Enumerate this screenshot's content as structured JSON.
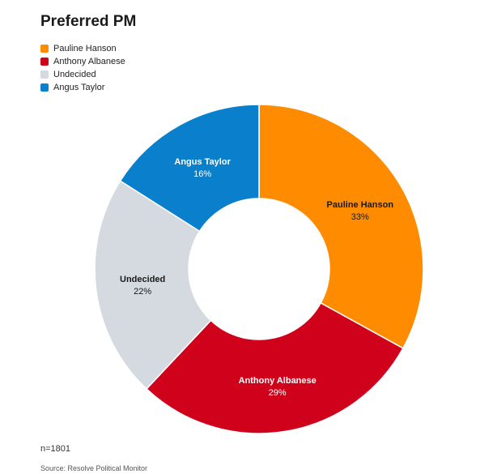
{
  "chart_data": {
    "type": "pie",
    "title": "Preferred PM",
    "donut": true,
    "legend_position": "top-left",
    "slices": [
      {
        "name": "Pauline Hanson",
        "value": 33,
        "label": "33%",
        "color": "#ff8c00",
        "text_color": "#1a1a1a"
      },
      {
        "name": "Anthony Albanese",
        "value": 29,
        "label": "29%",
        "color": "#d0021b",
        "text_color": "#ffffff"
      },
      {
        "name": "Undecided",
        "value": 22,
        "label": "22%",
        "color": "#d5d9e0",
        "text_color": "#1a1a1a"
      },
      {
        "name": "Angus Taylor",
        "value": 16,
        "label": "16%",
        "color": "#0a7fcc",
        "text_color": "#ffffff"
      }
    ]
  },
  "footnote": "n=1801",
  "source": "Source: Resolve Political Monitor"
}
